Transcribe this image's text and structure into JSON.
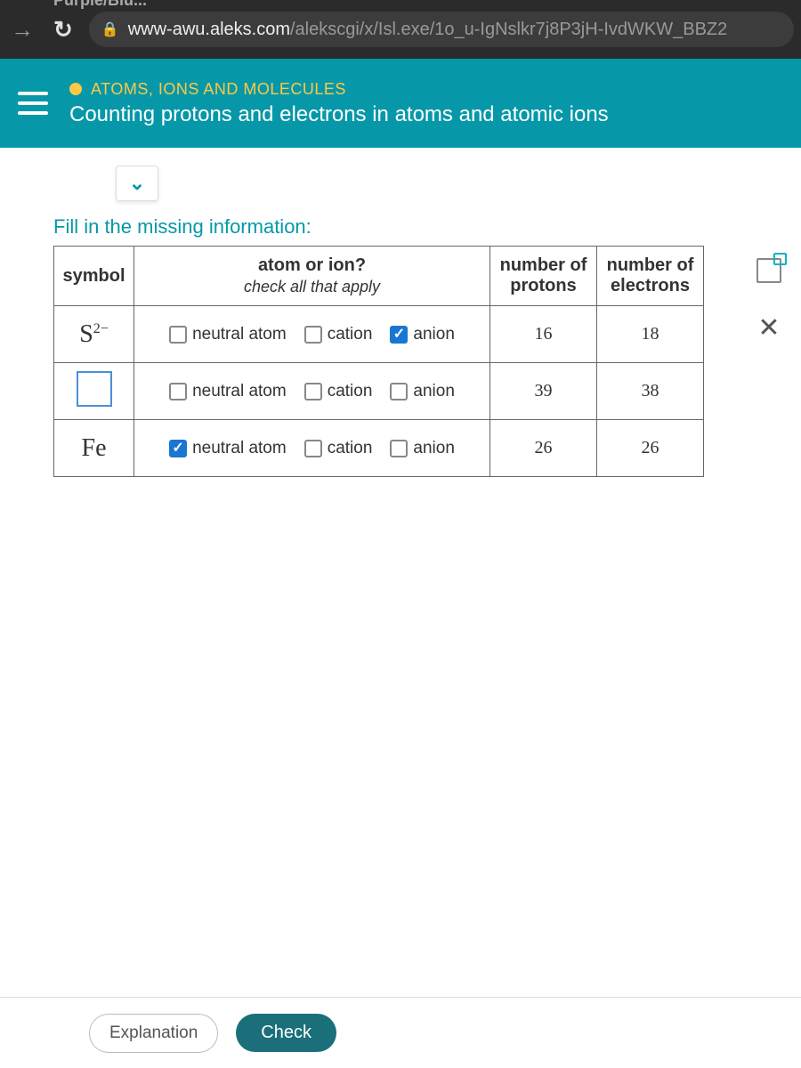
{
  "browser": {
    "tab_hint": "Purple/Blu...",
    "url_domain": "www-awu.aleks.com",
    "url_path": "/alekscgi/x/Isl.exe/1o_u-IgNslkr7j8P3jH-IvdWKW_BBZ2"
  },
  "header": {
    "topic": "ATOMS, IONS AND MOLECULES",
    "title": "Counting protons and electrons in atoms and atomic ions"
  },
  "instruction": "Fill in the missing information:",
  "table": {
    "headers": {
      "symbol": "symbol",
      "atom_ion": "atom or ion?",
      "atom_ion_sub": "check all that apply",
      "protons": "number of protons",
      "electrons": "number of electrons"
    },
    "check_labels": {
      "neutral": "neutral atom",
      "cation": "cation",
      "anion": "anion"
    },
    "rows": [
      {
        "symbol_main": "S",
        "symbol_sup": "2−",
        "symbol_is_input": false,
        "neutral_checked": false,
        "cation_checked": false,
        "anion_checked": true,
        "protons": "16",
        "electrons": "18"
      },
      {
        "symbol_main": "",
        "symbol_sup": "",
        "symbol_is_input": true,
        "neutral_checked": false,
        "cation_checked": false,
        "anion_checked": false,
        "protons": "39",
        "electrons": "38"
      },
      {
        "symbol_main": "Fe",
        "symbol_sup": "",
        "symbol_is_input": false,
        "neutral_checked": true,
        "cation_checked": false,
        "anion_checked": false,
        "protons": "26",
        "electrons": "26"
      }
    ]
  },
  "buttons": {
    "explanation": "Explanation",
    "check": "Check"
  },
  "colors": {
    "header_bg": "#0698a8",
    "topic": "#ffc845",
    "link": "#0698a8",
    "check_blue": "#1976d2",
    "btn_check": "#1b6f7a"
  }
}
